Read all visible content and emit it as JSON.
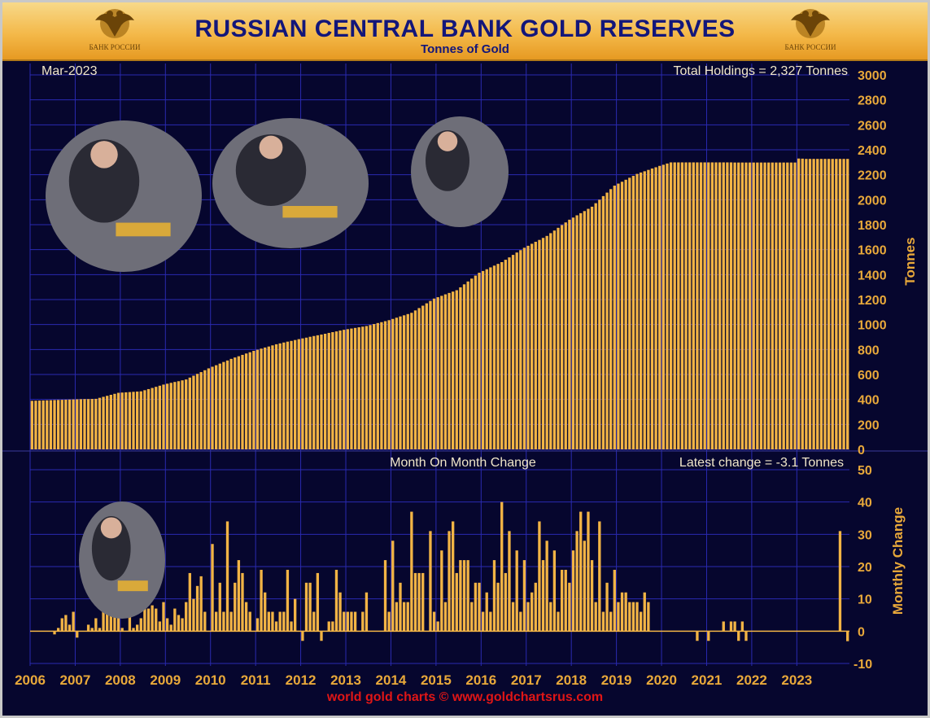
{
  "header": {
    "title": "RUSSIAN CENTRAL BANK GOLD RESERVES",
    "subtitle": "Tonnes of Gold",
    "emblem_text": "БАНК РОССИИ"
  },
  "footer": {
    "credit": "world gold charts © www.goldchartsrus.com"
  },
  "colors": {
    "background": "#06062e",
    "grid": "#2a2ab0",
    "bar": "#f2b445",
    "axis_text": "#e8a83a",
    "label_text": "#f0e6c8",
    "title": "#13167a",
    "footer": "#e01616"
  },
  "chart_data": [
    {
      "type": "bar",
      "period_label": "Mar-2023",
      "annotation": "Total Holdings = 2,327 Tonnes",
      "ylabel": "Tonnes",
      "ylim": [
        0,
        3000
      ],
      "yticks": [
        0,
        200,
        400,
        600,
        800,
        1000,
        1200,
        1400,
        1600,
        1800,
        2000,
        2200,
        2400,
        2600,
        2800,
        3000
      ],
      "x_start": "2006-01",
      "xtick_labels": [
        "2006",
        "2007",
        "2008",
        "2009",
        "2010",
        "2011",
        "2012",
        "2013",
        "2014",
        "2015",
        "2016",
        "2017",
        "2018",
        "2019",
        "2020",
        "2021",
        "2022",
        "2023"
      ],
      "grid": true,
      "keypoints": [
        [
          "2006-01",
          389
        ],
        [
          "2006-12",
          400
        ],
        [
          "2007-06",
          405
        ],
        [
          "2007-12",
          453
        ],
        [
          "2008-06",
          465
        ],
        [
          "2008-12",
          519
        ],
        [
          "2009-06",
          560
        ],
        [
          "2009-12",
          649
        ],
        [
          "2010-06",
          725
        ],
        [
          "2010-12",
          789
        ],
        [
          "2011-06",
          842
        ],
        [
          "2011-12",
          883
        ],
        [
          "2012-06",
          920
        ],
        [
          "2012-12",
          958
        ],
        [
          "2013-06",
          988
        ],
        [
          "2013-12",
          1035
        ],
        [
          "2014-06",
          1094
        ],
        [
          "2014-12",
          1208
        ],
        [
          "2015-06",
          1275
        ],
        [
          "2015-12",
          1415
        ],
        [
          "2016-06",
          1500
        ],
        [
          "2016-12",
          1615
        ],
        [
          "2017-06",
          1710
        ],
        [
          "2017-12",
          1840
        ],
        [
          "2018-06",
          1944
        ],
        [
          "2018-12",
          2113
        ],
        [
          "2019-06",
          2207
        ],
        [
          "2019-12",
          2271
        ],
        [
          "2020-03",
          2299
        ],
        [
          "2022-12",
          2298
        ],
        [
          "2023-01",
          2330
        ],
        [
          "2023-03",
          2327
        ]
      ]
    },
    {
      "type": "bar",
      "title": "Month On Month Change",
      "annotation": "Latest change = -3.1 Tonnes",
      "ylabel": "Monthly Change",
      "ylim": [
        -10,
        50
      ],
      "yticks": [
        -10,
        0,
        10,
        20,
        30,
        40,
        50
      ],
      "x_start": "2006-01",
      "grid": true,
      "values": [
        0,
        0,
        0,
        0,
        0,
        0,
        -1,
        1,
        4,
        5,
        2,
        6,
        -2,
        0,
        0,
        2,
        1,
        4,
        1,
        7,
        7,
        7,
        7,
        5,
        1,
        0,
        6,
        1,
        2,
        4,
        8,
        7,
        8,
        7,
        3,
        9,
        4,
        2,
        7,
        5,
        4,
        9,
        18,
        10,
        14,
        17,
        6,
        0,
        27,
        6,
        15,
        6,
        34,
        6,
        15,
        22,
        18,
        9,
        6,
        0,
        4,
        19,
        12,
        6,
        6,
        3,
        6,
        6,
        19,
        3,
        10,
        0,
        -3,
        15,
        15,
        6,
        18,
        -3,
        0,
        3,
        3,
        19,
        12,
        6,
        6,
        6,
        6,
        0,
        6,
        12,
        0,
        0,
        0,
        0,
        22,
        6,
        28,
        9,
        15,
        9,
        9,
        37,
        18,
        18,
        18,
        0,
        31,
        6,
        3,
        25,
        9,
        31,
        34,
        18,
        22,
        22,
        22,
        9,
        15,
        15,
        6,
        12,
        6,
        22,
        15,
        40,
        18,
        31,
        9,
        25,
        6,
        22,
        9,
        12,
        15,
        34,
        22,
        28,
        9,
        25,
        6,
        19,
        19,
        15,
        25,
        31,
        37,
        28,
        37,
        22,
        9,
        34,
        6,
        15,
        6,
        19,
        9,
        12,
        12,
        9,
        9,
        9,
        6,
        12,
        9,
        0,
        0,
        0,
        0,
        0,
        0,
        0,
        0,
        0,
        0,
        0,
        0,
        -3,
        0,
        0,
        -3,
        0,
        0,
        0,
        3,
        0,
        3,
        3,
        -3,
        3,
        -3,
        0,
        0,
        0,
        0,
        0,
        0,
        0,
        0,
        0,
        0,
        0,
        0,
        0,
        0,
        0,
        0,
        0,
        0,
        0,
        0,
        0,
        0,
        0,
        0,
        31,
        0,
        -3.1
      ]
    }
  ]
}
